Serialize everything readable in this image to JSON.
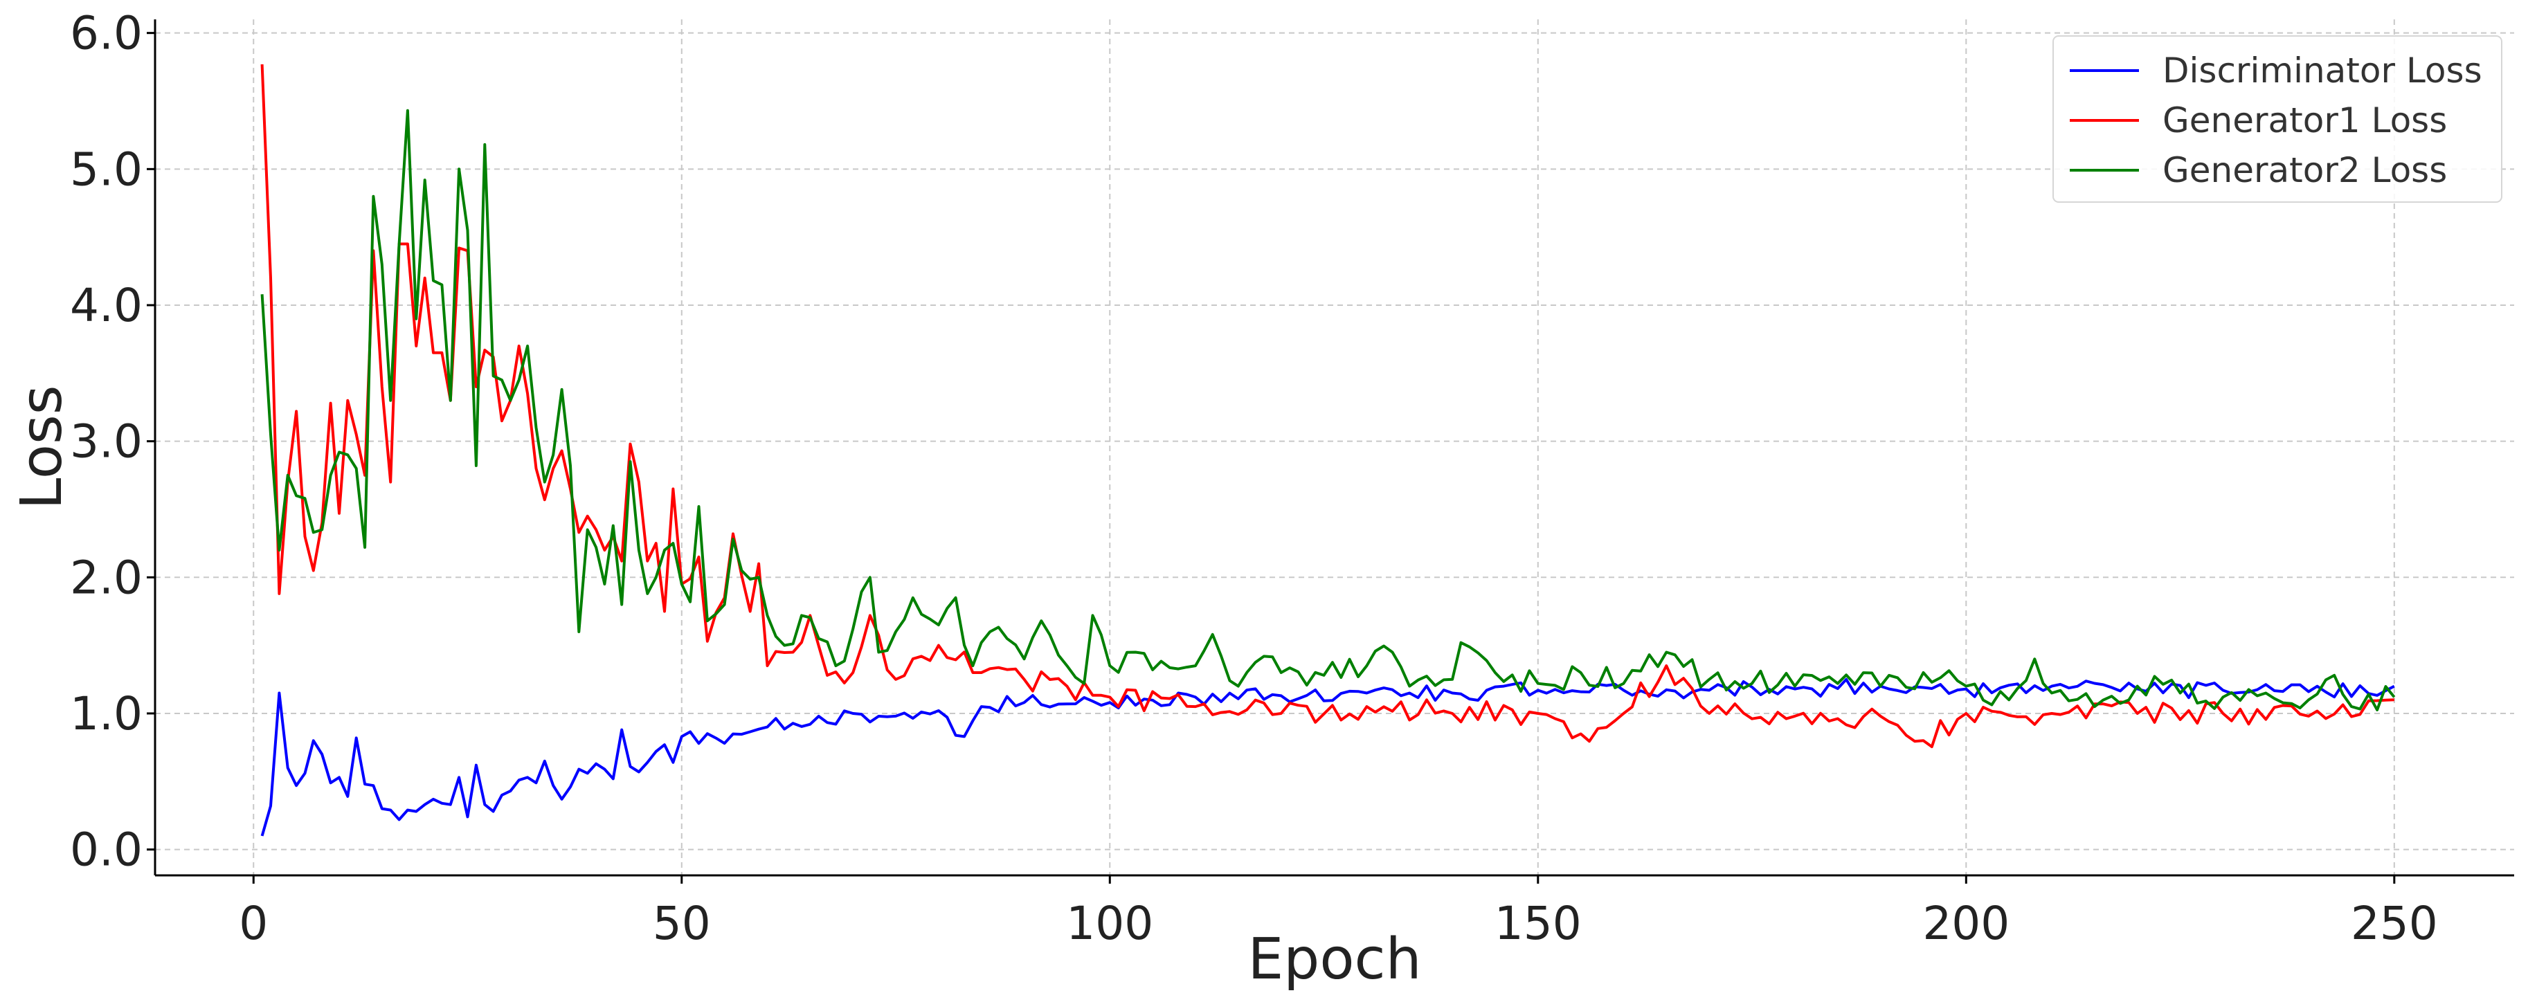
{
  "chart_data": {
    "type": "line",
    "xlabel": "Epoch",
    "ylabel": "Loss",
    "xlim": [
      -11.5,
      264
    ],
    "ylim": [
      -0.19,
      6.1
    ],
    "xticks": [
      0,
      50,
      100,
      150,
      200,
      250
    ],
    "xtick_labels": [
      "0",
      "50",
      "100",
      "150",
      "200",
      "250"
    ],
    "yticks": [
      0,
      1,
      2,
      3,
      4,
      5,
      6
    ],
    "ytick_labels": [
      "0.0",
      "1.0",
      "2.0",
      "3.0",
      "4.0",
      "5.0",
      "6.0"
    ],
    "grid": true,
    "legend_position": "top-right",
    "x": [
      1,
      250
    ],
    "series": [
      {
        "name": "Discriminator Loss",
        "color": "#0000ff",
        "anchors": [
          [
            1,
            0.1
          ],
          [
            2,
            0.32
          ],
          [
            3,
            1.15
          ],
          [
            4,
            0.6
          ],
          [
            5,
            0.47
          ],
          [
            6,
            0.56
          ],
          [
            7,
            0.8
          ],
          [
            8,
            0.7
          ],
          [
            9,
            0.49
          ],
          [
            10,
            0.53
          ],
          [
            11,
            0.39
          ],
          [
            12,
            0.82
          ],
          [
            13,
            0.48
          ],
          [
            14,
            0.47
          ],
          [
            15,
            0.3
          ],
          [
            16,
            0.29
          ],
          [
            17,
            0.22
          ],
          [
            18,
            0.29
          ],
          [
            19,
            0.28
          ],
          [
            20,
            0.33
          ],
          [
            21,
            0.37
          ],
          [
            22,
            0.34
          ],
          [
            23,
            0.33
          ],
          [
            24,
            0.53
          ],
          [
            25,
            0.24
          ],
          [
            26,
            0.62
          ],
          [
            27,
            0.33
          ],
          [
            28,
            0.28
          ],
          [
            29,
            0.4
          ],
          [
            30,
            0.43
          ],
          [
            31,
            0.51
          ],
          [
            32,
            0.53
          ],
          [
            33,
            0.49
          ],
          [
            34,
            0.65
          ],
          [
            35,
            0.47
          ],
          [
            36,
            0.37
          ],
          [
            37,
            0.46
          ],
          [
            38,
            0.59
          ],
          [
            39,
            0.56
          ],
          [
            40,
            0.63
          ],
          [
            41,
            0.59
          ],
          [
            42,
            0.52
          ],
          [
            43,
            0.88
          ],
          [
            44,
            0.61
          ],
          [
            45,
            0.57
          ],
          [
            46,
            0.64
          ],
          [
            47,
            0.72
          ],
          [
            48,
            0.77
          ],
          [
            49,
            0.64
          ],
          [
            50,
            0.83
          ],
          [
            55,
            0.78
          ],
          [
            60,
            0.9
          ],
          [
            65,
            0.92
          ],
          [
            70,
            1.0
          ],
          [
            75,
            0.98
          ],
          [
            80,
            1.02
          ],
          [
            83,
            0.83
          ],
          [
            85,
            1.05
          ],
          [
            90,
            1.08
          ],
          [
            95,
            1.07
          ],
          [
            100,
            1.08
          ],
          [
            110,
            1.12
          ],
          [
            120,
            1.13
          ],
          [
            130,
            1.15
          ],
          [
            140,
            1.15
          ],
          [
            150,
            1.17
          ],
          [
            160,
            1.17
          ],
          [
            170,
            1.17
          ],
          [
            180,
            1.18
          ],
          [
            190,
            1.2
          ],
          [
            200,
            1.18
          ],
          [
            210,
            1.2
          ],
          [
            220,
            1.18
          ],
          [
            230,
            1.17
          ],
          [
            240,
            1.16
          ],
          [
            250,
            1.2
          ]
        ],
        "noise": 0.06
      },
      {
        "name": "Generator1 Loss",
        "color": "#ff0000",
        "anchors": [
          [
            1,
            5.77
          ],
          [
            2,
            4.2
          ],
          [
            3,
            1.88
          ],
          [
            4,
            2.7
          ],
          [
            5,
            3.22
          ],
          [
            6,
            2.3
          ],
          [
            7,
            2.05
          ],
          [
            8,
            2.4
          ],
          [
            9,
            3.28
          ],
          [
            10,
            2.47
          ],
          [
            11,
            3.3
          ],
          [
            12,
            3.05
          ],
          [
            13,
            2.75
          ],
          [
            14,
            4.4
          ],
          [
            15,
            3.4
          ],
          [
            16,
            2.7
          ],
          [
            17,
            4.45
          ],
          [
            18,
            4.45
          ],
          [
            19,
            3.7
          ],
          [
            20,
            4.2
          ],
          [
            21,
            3.65
          ],
          [
            22,
            3.65
          ],
          [
            23,
            3.3
          ],
          [
            24,
            4.42
          ],
          [
            25,
            4.4
          ],
          [
            26,
            3.4
          ],
          [
            27,
            3.67
          ],
          [
            28,
            3.62
          ],
          [
            29,
            3.15
          ],
          [
            30,
            3.3
          ],
          [
            31,
            3.7
          ],
          [
            32,
            3.35
          ],
          [
            33,
            2.8
          ],
          [
            34,
            2.57
          ],
          [
            35,
            2.8
          ],
          [
            36,
            2.93
          ],
          [
            37,
            2.65
          ],
          [
            38,
            2.33
          ],
          [
            39,
            2.45
          ],
          [
            40,
            2.35
          ],
          [
            41,
            2.2
          ],
          [
            42,
            2.3
          ],
          [
            43,
            2.12
          ],
          [
            44,
            2.98
          ],
          [
            45,
            2.7
          ],
          [
            46,
            2.12
          ],
          [
            47,
            2.25
          ],
          [
            48,
            1.75
          ],
          [
            49,
            2.65
          ],
          [
            50,
            1.95
          ],
          [
            52,
            2.15
          ],
          [
            53,
            1.53
          ],
          [
            55,
            1.85
          ],
          [
            56,
            2.32
          ],
          [
            58,
            1.75
          ],
          [
            59,
            2.1
          ],
          [
            60,
            1.35
          ],
          [
            63,
            1.45
          ],
          [
            65,
            1.72
          ],
          [
            67,
            1.28
          ],
          [
            70,
            1.3
          ],
          [
            72,
            1.72
          ],
          [
            75,
            1.25
          ],
          [
            78,
            1.42
          ],
          [
            80,
            1.5
          ],
          [
            85,
            1.3
          ],
          [
            90,
            1.25
          ],
          [
            95,
            1.2
          ],
          [
            100,
            1.12
          ],
          [
            110,
            1.05
          ],
          [
            120,
            1.0
          ],
          [
            130,
            1.05
          ],
          [
            140,
            1.0
          ],
          [
            150,
            1.0
          ],
          [
            155,
            0.85
          ],
          [
            160,
            1.0
          ],
          [
            165,
            1.35
          ],
          [
            170,
            1.0
          ],
          [
            180,
            0.98
          ],
          [
            190,
            0.98
          ],
          [
            195,
            0.8
          ],
          [
            200,
            1.0
          ],
          [
            210,
            1.0
          ],
          [
            220,
            1.0
          ],
          [
            230,
            1.0
          ],
          [
            240,
            0.98
          ],
          [
            250,
            1.1
          ]
        ],
        "noise": 0.09
      },
      {
        "name": "Generator2 Loss",
        "color": "#008000",
        "anchors": [
          [
            1,
            4.08
          ],
          [
            2,
            3.05
          ],
          [
            3,
            2.2
          ],
          [
            4,
            2.75
          ],
          [
            5,
            2.6
          ],
          [
            6,
            2.58
          ],
          [
            7,
            2.33
          ],
          [
            8,
            2.35
          ],
          [
            9,
            2.75
          ],
          [
            10,
            2.92
          ],
          [
            11,
            2.9
          ],
          [
            12,
            2.8
          ],
          [
            13,
            2.22
          ],
          [
            14,
            4.8
          ],
          [
            15,
            4.3
          ],
          [
            16,
            3.3
          ],
          [
            17,
            4.45
          ],
          [
            18,
            5.43
          ],
          [
            19,
            3.9
          ],
          [
            20,
            4.92
          ],
          [
            21,
            4.18
          ],
          [
            22,
            4.15
          ],
          [
            23,
            3.3
          ],
          [
            24,
            5.0
          ],
          [
            25,
            4.55
          ],
          [
            26,
            2.82
          ],
          [
            27,
            5.18
          ],
          [
            28,
            3.48
          ],
          [
            29,
            3.45
          ],
          [
            30,
            3.3
          ],
          [
            31,
            3.45
          ],
          [
            32,
            3.7
          ],
          [
            33,
            3.1
          ],
          [
            34,
            2.7
          ],
          [
            35,
            2.9
          ],
          [
            36,
            3.38
          ],
          [
            37,
            2.82
          ],
          [
            38,
            1.6
          ],
          [
            39,
            2.35
          ],
          [
            40,
            2.22
          ],
          [
            41,
            1.95
          ],
          [
            42,
            2.38
          ],
          [
            43,
            1.8
          ],
          [
            44,
            2.85
          ],
          [
            45,
            2.2
          ],
          [
            46,
            1.88
          ],
          [
            47,
            2.0
          ],
          [
            48,
            2.2
          ],
          [
            49,
            2.25
          ],
          [
            50,
            1.95
          ],
          [
            51,
            1.82
          ],
          [
            52,
            2.52
          ],
          [
            53,
            1.68
          ],
          [
            55,
            1.8
          ],
          [
            56,
            2.28
          ],
          [
            57,
            2.05
          ],
          [
            59,
            2.0
          ],
          [
            60,
            1.72
          ],
          [
            62,
            1.5
          ],
          [
            64,
            1.72
          ],
          [
            66,
            1.55
          ],
          [
            68,
            1.35
          ],
          [
            70,
            1.62
          ],
          [
            72,
            2.0
          ],
          [
            73,
            1.45
          ],
          [
            75,
            1.6
          ],
          [
            77,
            1.85
          ],
          [
            80,
            1.65
          ],
          [
            82,
            1.85
          ],
          [
            84,
            1.35
          ],
          [
            86,
            1.6
          ],
          [
            88,
            1.55
          ],
          [
            90,
            1.4
          ],
          [
            92,
            1.68
          ],
          [
            95,
            1.35
          ],
          [
            97,
            1.22
          ],
          [
            98,
            1.72
          ],
          [
            100,
            1.35
          ],
          [
            103,
            1.45
          ],
          [
            105,
            1.32
          ],
          [
            110,
            1.35
          ],
          [
            112,
            1.58
          ],
          [
            115,
            1.2
          ],
          [
            118,
            1.42
          ],
          [
            120,
            1.3
          ],
          [
            125,
            1.28
          ],
          [
            130,
            1.35
          ],
          [
            133,
            1.45
          ],
          [
            135,
            1.2
          ],
          [
            140,
            1.25
          ],
          [
            141,
            1.52
          ],
          [
            145,
            1.3
          ],
          [
            150,
            1.22
          ],
          [
            155,
            1.3
          ],
          [
            160,
            1.22
          ],
          [
            165,
            1.45
          ],
          [
            170,
            1.25
          ],
          [
            175,
            1.22
          ],
          [
            180,
            1.2
          ],
          [
            185,
            1.22
          ],
          [
            190,
            1.2
          ],
          [
            195,
            1.3
          ],
          [
            200,
            1.2
          ],
          [
            205,
            1.1
          ],
          [
            208,
            1.4
          ],
          [
            210,
            1.15
          ],
          [
            215,
            1.05
          ],
          [
            220,
            1.2
          ],
          [
            225,
            1.15
          ],
          [
            230,
            1.12
          ],
          [
            235,
            1.15
          ],
          [
            240,
            1.1
          ],
          [
            243,
            1.28
          ],
          [
            245,
            1.05
          ],
          [
            250,
            1.12
          ]
        ],
        "noise": 0.1
      }
    ]
  }
}
